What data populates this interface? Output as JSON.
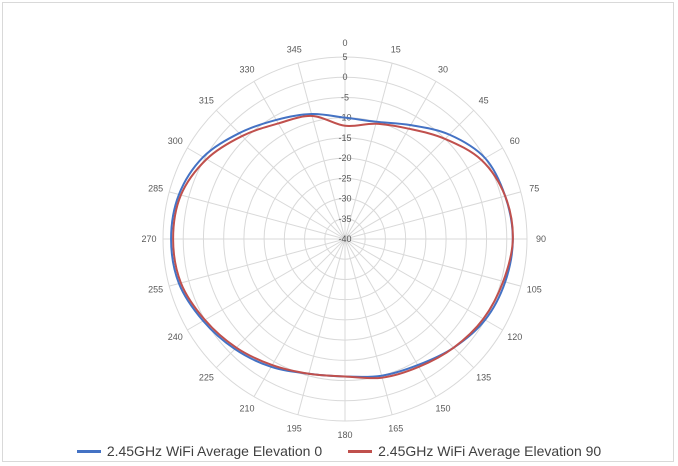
{
  "chart_data": {
    "type": "polar-line",
    "title": "",
    "angle_direction": "clockwise",
    "angle_zero": "top",
    "angle_labels": [
      "0",
      "15",
      "30",
      "45",
      "60",
      "75",
      "90",
      "105",
      "120",
      "135",
      "150",
      "165",
      "180",
      "195",
      "210",
      "225",
      "240",
      "255",
      "270",
      "285",
      "300",
      "315",
      "330",
      "345"
    ],
    "radial_ticks": [
      "5",
      "0",
      "-5",
      "-10",
      "-15",
      "-20",
      "-25",
      "-30",
      "-35",
      "-40"
    ],
    "rlim": [
      -40,
      5
    ],
    "grid": true,
    "legend_position": "bottom",
    "series": [
      {
        "name": "2.45GHz WiFi Average Elevation 0",
        "color": "#4472c4",
        "angles": [
          0,
          15,
          30,
          45,
          60,
          75,
          90,
          105,
          120,
          135,
          150,
          165,
          180,
          195,
          210,
          225,
          240,
          255,
          270,
          285,
          300,
          315,
          330,
          345,
          360
        ],
        "values": [
          -10,
          -10,
          -7.5,
          -3.5,
          0,
          1,
          1.5,
          1,
          0,
          -2,
          -4,
          -5,
          -6,
          -5.5,
          -3.5,
          -1.5,
          0.5,
          2.5,
          3,
          2.5,
          0.5,
          -3,
          -6,
          -8,
          -10
        ]
      },
      {
        "name": "2.45GHz WiFi Average Elevation 90",
        "color": "#c0504d",
        "angles": [
          0,
          15,
          30,
          45,
          60,
          75,
          90,
          105,
          120,
          135,
          150,
          165,
          180,
          195,
          210,
          225,
          240,
          255,
          270,
          285,
          300,
          315,
          330,
          345,
          360
        ],
        "values": [
          -12,
          -10.5,
          -8.5,
          -5,
          -1,
          1,
          1.5,
          0.5,
          -0.5,
          -2,
          -3.5,
          -4.5,
          -6,
          -5.5,
          -4,
          -2,
          0,
          2,
          2.5,
          2,
          -0.5,
          -4,
          -7,
          -8.5,
          -12
        ]
      }
    ]
  }
}
